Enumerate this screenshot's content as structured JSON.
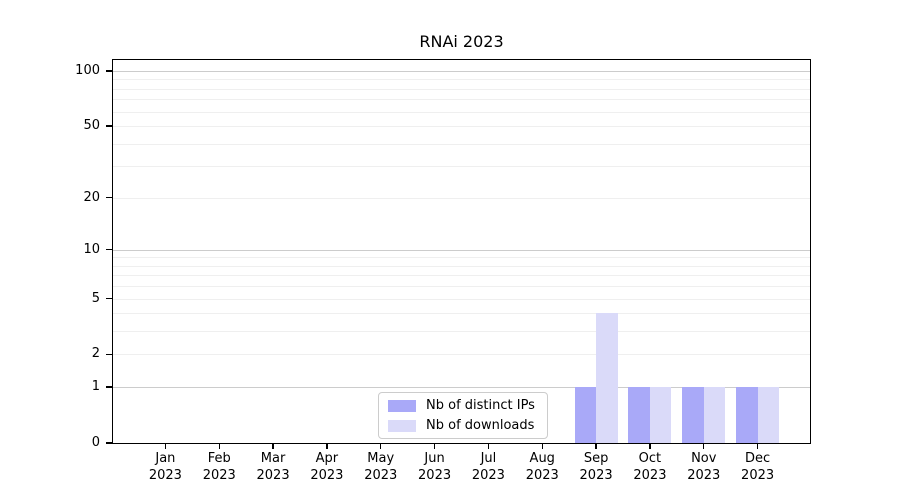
{
  "figure": {
    "title": "RNAi 2023"
  },
  "chart_data": {
    "type": "bar",
    "title": "RNAi 2023",
    "categories": [
      "Jan 2023",
      "Feb 2023",
      "Mar 2023",
      "Apr 2023",
      "May 2023",
      "Jun 2023",
      "Jul 2023",
      "Aug 2023",
      "Sep 2023",
      "Oct 2023",
      "Nov 2023",
      "Dec 2023"
    ],
    "series": [
      {
        "name": "Nb of distinct IPs",
        "color": "#a9a9f8",
        "values": [
          0,
          0,
          0,
          0,
          0,
          0,
          0,
          0,
          1,
          1,
          1,
          1
        ]
      },
      {
        "name": "Nb of downloads",
        "color": "#dadaf9",
        "values": [
          0,
          0,
          0,
          0,
          0,
          0,
          0,
          0,
          4,
          1,
          1,
          1
        ]
      }
    ],
    "xlabel": "",
    "ylabel": "",
    "yscale": "log1p",
    "ylim": [
      0,
      114.8
    ],
    "y_ticks": [
      0,
      1,
      2,
      5,
      10,
      20,
      50,
      100
    ],
    "gridlines_major": [
      1,
      10,
      100
    ],
    "gridlines_minor": [
      2,
      3,
      4,
      5,
      6,
      7,
      8,
      9,
      20,
      30,
      40,
      50,
      60,
      70,
      80,
      90
    ],
    "grid": "horizontal",
    "legend_position": "lower center"
  },
  "legend": {
    "items": [
      {
        "label": "Nb of distinct IPs",
        "color": "#a9a9f8"
      },
      {
        "label": "Nb of downloads",
        "color": "#dadaf9"
      }
    ]
  },
  "colors": {
    "grid_major": "#cccccc",
    "grid_minor": "#efefef",
    "axis_frame": "#000000",
    "legend_border": "#cccccc",
    "background": "#ffffff",
    "text": "#000000"
  }
}
